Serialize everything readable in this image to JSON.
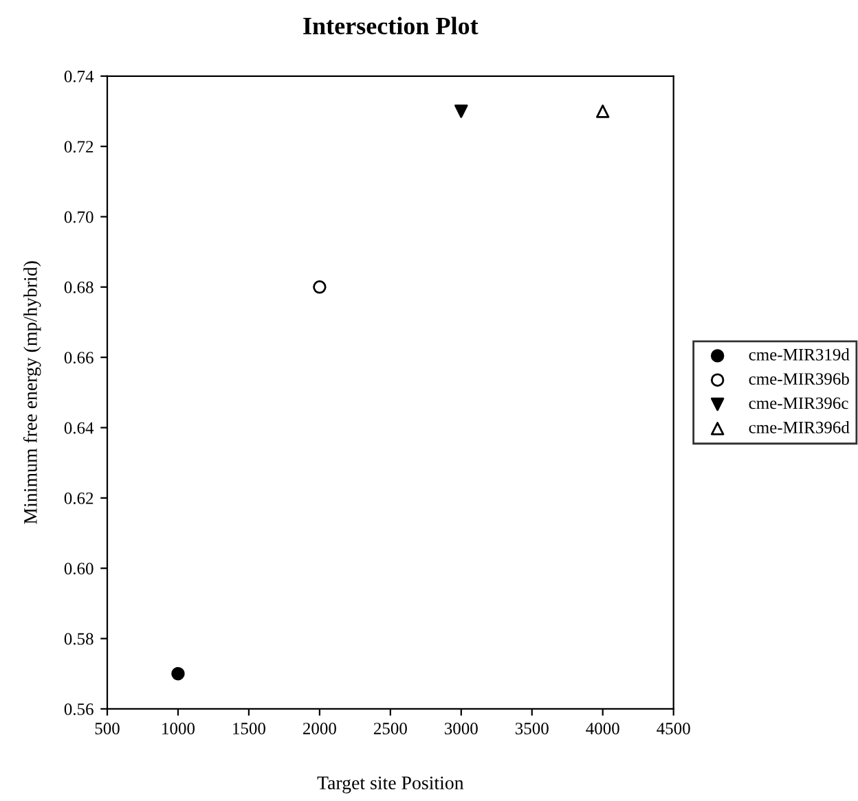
{
  "chart_data": {
    "type": "scatter",
    "title": "Intersection Plot",
    "xlabel": "Target site Position",
    "ylabel": "Minimum free energy (mp/hybrid)",
    "series": [
      {
        "name": "cme-MIR319d",
        "color": "#000000",
        "x": [
          1000
        ],
        "values": [
          0.57
        ]
      },
      {
        "name": "cme-MIR396b",
        "color": "#000000",
        "x": [
          2000
        ],
        "values": [
          0.68
        ]
      },
      {
        "name": "cme-MIR396c",
        "color": "#000000",
        "x": [
          3000
        ],
        "values": [
          0.73
        ]
      },
      {
        "name": "cme-MIR396d",
        "color": "#000000",
        "x": [
          4000
        ],
        "values": [
          0.73
        ]
      }
    ],
    "xlim": [
      500,
      4500
    ],
    "xticks": [
      500,
      1000,
      1500,
      2000,
      2500,
      3000,
      3500,
      4000,
      4500
    ],
    "ylim": [
      0.56,
      0.74
    ],
    "yticks": [
      {
        "value": 0.56,
        "label": "0.56"
      },
      {
        "value": 0.58,
        "label": "0.58"
      },
      {
        "value": 0.6,
        "label": "0.60"
      },
      {
        "value": 0.62,
        "label": "0.62"
      },
      {
        "value": 0.64,
        "label": "0.64"
      },
      {
        "value": 0.66,
        "label": "0.66"
      },
      {
        "value": 0.68,
        "label": "0.68"
      },
      {
        "value": 0.7,
        "label": "0.70"
      },
      {
        "value": 0.72,
        "label": "0.72"
      },
      {
        "value": 0.74,
        "label": "0.74"
      }
    ],
    "grid": false,
    "legend": "right"
  }
}
